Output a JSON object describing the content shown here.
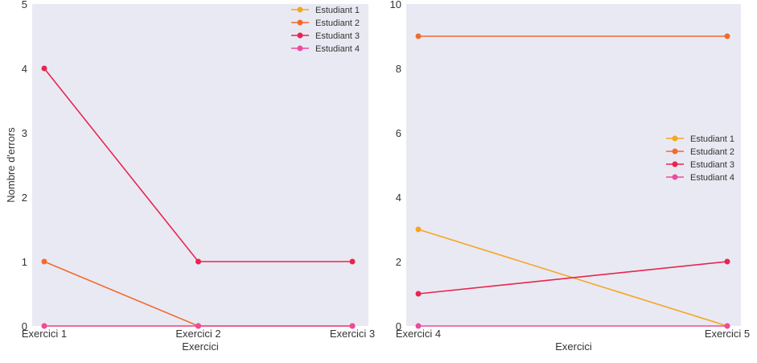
{
  "chart_data": [
    {
      "type": "line",
      "title": "",
      "categories": [
        "Exercici 1",
        "Exercici 2",
        "Exercici 3"
      ],
      "xlabel": "Exercici",
      "ylabel": "Nombre d'errors",
      "ylim": [
        0,
        5
      ],
      "yticks": [
        "0",
        "1",
        "2",
        "3",
        "4",
        "5"
      ],
      "legend_position": "top-right",
      "grid": false,
      "series": [
        {
          "name": "Estudiant 1",
          "color": "#f5a623",
          "values": [
            0,
            0,
            0
          ]
        },
        {
          "name": "Estudiant 2",
          "color": "#f26b2c",
          "values": [
            1,
            0,
            0
          ]
        },
        {
          "name": "Estudiant 3",
          "color": "#e8254f",
          "values": [
            4,
            1,
            1
          ]
        },
        {
          "name": "Estudiant 4",
          "color": "#ee4a9e",
          "values": [
            0,
            0,
            0
          ]
        }
      ]
    },
    {
      "type": "line",
      "title": "",
      "categories": [
        "Exercici 4",
        "Exercici 5"
      ],
      "xlabel": "Exercici",
      "ylabel": "",
      "ylim": [
        0,
        10
      ],
      "yticks": [
        "0",
        "2",
        "4",
        "6",
        "8",
        "10"
      ],
      "legend_position": "center-right",
      "grid": false,
      "series": [
        {
          "name": "Estudiant 1",
          "color": "#f5a623",
          "values": [
            3,
            0
          ]
        },
        {
          "name": "Estudiant 2",
          "color": "#f26b2c",
          "values": [
            9,
            9
          ]
        },
        {
          "name": "Estudiant 3",
          "color": "#e8254f",
          "values": [
            1,
            2
          ]
        },
        {
          "name": "Estudiant 4",
          "color": "#ee4a9e",
          "values": [
            0,
            0
          ]
        }
      ]
    }
  ],
  "colors": {
    "plot_background": "#e9e9f3"
  }
}
